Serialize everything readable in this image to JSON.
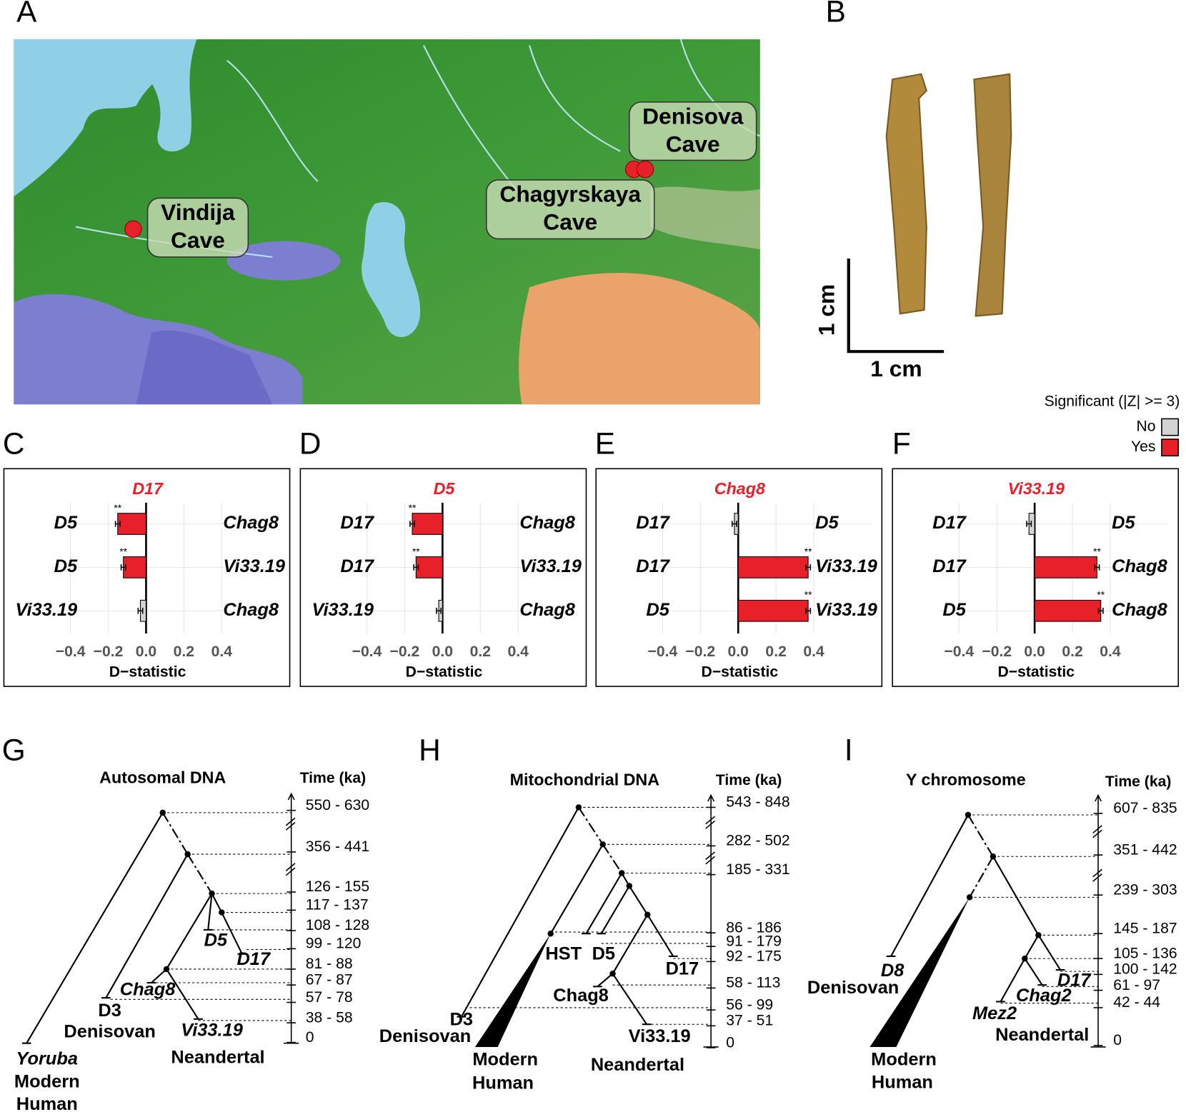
{
  "panels": [
    "A",
    "B",
    "C",
    "D",
    "E",
    "F",
    "G",
    "H",
    "I"
  ],
  "map": {
    "labels": [
      [
        "Vindija",
        "Cave"
      ],
      [
        "Chagyrskaya",
        "Cave"
      ],
      [
        "Denisova",
        "Cave"
      ]
    ]
  },
  "scale": {
    "vertical": "1 cm",
    "horizontal": "1 cm"
  },
  "legend": {
    "title": "Significant (|Z| >= 3)",
    "items": [
      {
        "name": "No",
        "color": "#d3d3d3"
      },
      {
        "name": "Yes",
        "color": "#e8202a"
      }
    ]
  },
  "chart_data": [
    {
      "type": "bar",
      "title": "D17",
      "title_color": "#e8202a",
      "categories": [
        "D5",
        "D5",
        "Vi33.19"
      ],
      "right_labels": [
        "Chag8",
        "Vi33.19",
        "Chag8"
      ],
      "values": [
        -0.15,
        -0.12,
        -0.03
      ],
      "errors": [
        0.012,
        0.012,
        0.012
      ],
      "colors": [
        "#e8202a",
        "#e8202a",
        "#d3d3d3"
      ],
      "annotations": [
        "**",
        "**",
        null
      ],
      "xlim": [
        -0.5,
        0.7
      ],
      "xticks": [
        {
          "value": -0.4,
          "label": "−0.4"
        },
        {
          "value": -0.2,
          "label": "−0.2"
        },
        {
          "value": 0,
          "label": "0.0"
        },
        0.2,
        0.4
      ],
      "xlabel": "D−statistic",
      "grid": true
    },
    {
      "type": "bar",
      "title": "D5",
      "title_color": "#e8202a",
      "categories": [
        "D17",
        "D17",
        "Vi33.19"
      ],
      "right_labels": [
        "Chag8",
        "Vi33.19",
        "Chag8"
      ],
      "values": [
        -0.16,
        -0.14,
        -0.02
      ],
      "errors": [
        0.012,
        0.012,
        0.012
      ],
      "colors": [
        "#e8202a",
        "#e8202a",
        "#d3d3d3"
      ],
      "annotations": [
        "**",
        "**",
        null
      ],
      "xlim": [
        -0.5,
        0.7
      ],
      "xticks": [
        {
          "value": -0.4,
          "label": "−0.4"
        },
        {
          "value": -0.2,
          "label": "−0.2"
        },
        {
          "value": 0,
          "label": "0.0"
        },
        0.2,
        0.4
      ],
      "xlabel": "D−statistic",
      "grid": true
    },
    {
      "type": "bar",
      "title": "Chag8",
      "title_color": "#e8202a",
      "categories": [
        "D17",
        "D17",
        "D5"
      ],
      "right_labels": [
        "D5",
        "Vi33.19",
        "Vi33.19"
      ],
      "values": [
        -0.02,
        0.37,
        0.37
      ],
      "errors": [
        0.012,
        0.012,
        0.012
      ],
      "colors": [
        "#d3d3d3",
        "#e8202a",
        "#e8202a"
      ],
      "annotations": [
        null,
        "**",
        "**"
      ],
      "xlim": [
        -0.5,
        0.7
      ],
      "xticks": [
        {
          "value": -0.4,
          "label": "−0.4"
        },
        {
          "value": -0.2,
          "label": "−0.2"
        },
        {
          "value": 0,
          "label": "0.0"
        },
        0.2,
        0.4
      ],
      "xlabel": "D−statistic",
      "grid": true
    },
    {
      "type": "bar",
      "title": "Vi33.19",
      "title_color": "#e8202a",
      "categories": [
        "D17",
        "D17",
        "D5"
      ],
      "right_labels": [
        "D5",
        "Chag8",
        "Chag8"
      ],
      "values": [
        -0.03,
        0.33,
        0.35
      ],
      "errors": [
        0.012,
        0.012,
        0.012
      ],
      "colors": [
        "#d3d3d3",
        "#e8202a",
        "#e8202a"
      ],
      "annotations": [
        null,
        "**",
        "**"
      ],
      "xlim": [
        -0.5,
        0.7
      ],
      "xticks": [
        {
          "value": -0.4,
          "label": "−0.4"
        },
        {
          "value": -0.2,
          "label": "−0.2"
        },
        {
          "value": 0,
          "label": "0.0"
        },
        0.2,
        0.4
      ],
      "xlabel": "D−statistic",
      "grid": true
    }
  ],
  "trees": [
    {
      "title": "Autosomal DNA",
      "time_label": "Time (ka)",
      "times": [
        "550 - 630",
        "356 - 441",
        "126 - 155",
        "117 - 137",
        "108 - 128",
        "99 - 120",
        "81 - 88",
        "67 - 87",
        "57 - 78",
        "38 - 58",
        "0"
      ],
      "labels": [
        "D5",
        "D17",
        "Chag8",
        "D3",
        "Denisovan",
        "Vi33.19",
        "Neandertal",
        "Yoruba",
        "Modern",
        "Human"
      ]
    },
    {
      "title": "Mitochondrial DNA",
      "time_label": "Time (ka)",
      "times": [
        "543 - 848",
        "282 - 502",
        "185 - 331",
        "86 - 186",
        "91 - 179",
        "92 - 175",
        "58 - 113",
        "56 - 99",
        "37 - 51",
        "0"
      ],
      "labels": [
        "HST",
        "D5",
        "D17",
        "Chag8",
        "Vi33.19",
        "Neandertal",
        "D3",
        "Denisovan",
        "Modern",
        "Human"
      ]
    },
    {
      "title": "Y chromosome",
      "time_label": "Time (ka)",
      "times": [
        "607 - 835",
        "351 - 442",
        "239 - 303",
        "145 - 187",
        "105 - 136",
        "100 - 142",
        "61 - 97",
        "42 - 44",
        "0"
      ],
      "labels": [
        "D8",
        "D17",
        "Chag2",
        "Mez2",
        "Neandertal",
        "Denisovan",
        "Modern",
        "Human"
      ]
    }
  ]
}
